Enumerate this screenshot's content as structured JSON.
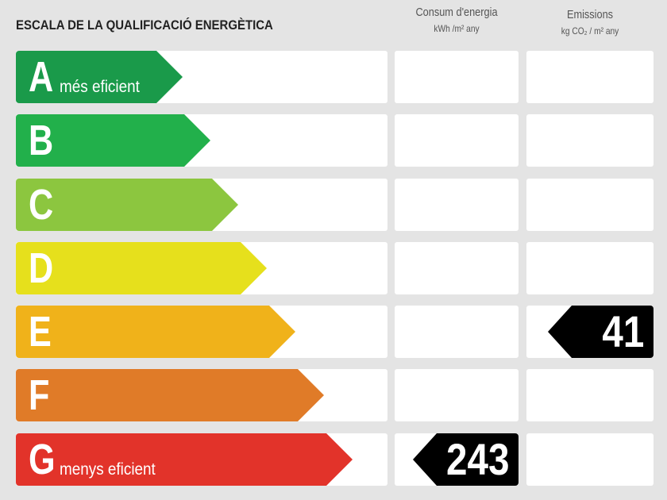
{
  "title": "ESCALA DE LA QUALIFICACIÓ ENERGÈTICA",
  "columns": {
    "consumption": {
      "label": "Consum d'energia",
      "unit": "kWh /m² any"
    },
    "emissions": {
      "label": "Emissions",
      "unit": "kg CO₂ / m² any"
    }
  },
  "ratings": [
    {
      "letter": "A",
      "description": "més eficient",
      "color": "#1a9a4a"
    },
    {
      "letter": "B",
      "description": "",
      "color": "#22b04b"
    },
    {
      "letter": "C",
      "description": "",
      "color": "#8cc63f"
    },
    {
      "letter": "D",
      "description": "",
      "color": "#e6e01c"
    },
    {
      "letter": "E",
      "description": "",
      "color": "#f0b21a"
    },
    {
      "letter": "F",
      "description": "",
      "color": "#e07b28"
    },
    {
      "letter": "G",
      "description": "menys eficient",
      "color": "#e2332a"
    }
  ],
  "results": {
    "consumption": {
      "rating": "G",
      "value": "243"
    },
    "emissions": {
      "rating": "E",
      "value": "41"
    }
  }
}
